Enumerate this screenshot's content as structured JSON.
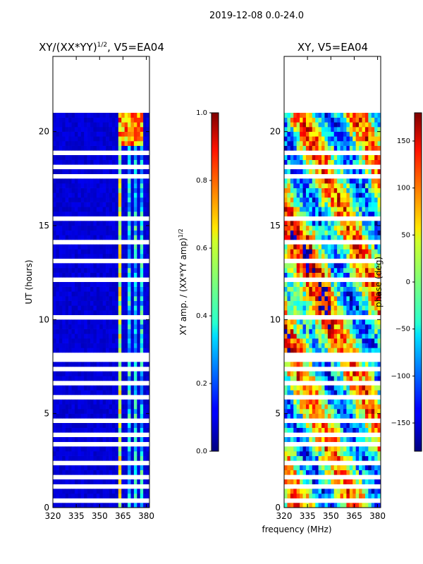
{
  "suptitle": "2019-12-08 0.0-24.0",
  "panels": [
    {
      "title_main": "XY/(XX*YY)",
      "title_sup": "1/2",
      "title_tail": ", V5=EA04"
    },
    {
      "title": "XY, V5=EA04"
    }
  ],
  "y_axis": {
    "label": "UT (hours)",
    "ticks": [
      "0",
      "5",
      "10",
      "15",
      "20"
    ]
  },
  "x_axis": {
    "label": "frequency (MHz)",
    "ticks": [
      "320",
      "335",
      "350",
      "365",
      "380"
    ]
  },
  "colorbars": [
    {
      "label_main": "XY amp. / (XX*YY amp)",
      "label_sup": "1/2",
      "ticks": [
        "0.0",
        "0.2",
        "0.4",
        "0.6",
        "0.8",
        "1.0"
      ]
    },
    {
      "label": "phase (deg)",
      "ticks": [
        "−150",
        "−100",
        "−50",
        "0",
        "50",
        "100",
        "150"
      ]
    }
  ],
  "chart_data": [
    {
      "type": "heatmap",
      "title": "XY/(XX*YY)^1/2, V5=EA04",
      "xlabel": "frequency (MHz)",
      "ylabel": "UT (hours)",
      "xlim": [
        320,
        382
      ],
      "ylim": [
        0,
        24
      ],
      "data_extent_hours": [
        0,
        21
      ],
      "colormap": "jet",
      "clim": [
        0.0,
        1.0
      ],
      "colorbar_label": "XY amp. / (XX*YY amp)^1/2",
      "colorbar_ticks": [
        0.0,
        0.2,
        0.4,
        0.6,
        0.8,
        1.0
      ],
      "x_ticks": [
        320,
        335,
        350,
        365,
        380
      ],
      "y_ticks": [
        0,
        5,
        10,
        15,
        20
      ]
    },
    {
      "type": "heatmap",
      "title": "XY, V5=EA04",
      "xlabel": "frequency (MHz)",
      "ylabel": "",
      "xlim": [
        320,
        382
      ],
      "ylim": [
        0,
        24
      ],
      "data_extent_hours": [
        0,
        21
      ],
      "colormap": "jet",
      "clim": [
        -180,
        180
      ],
      "colorbar_label": "phase (deg)",
      "colorbar_ticks": [
        -150,
        -100,
        -50,
        0,
        50,
        100,
        150
      ],
      "x_ticks": [
        320,
        335,
        350,
        365,
        380
      ],
      "y_ticks": [
        0,
        5,
        10,
        15,
        20
      ]
    }
  ]
}
